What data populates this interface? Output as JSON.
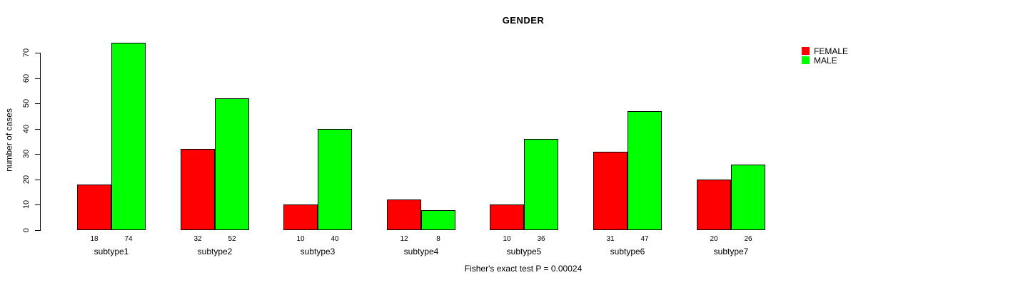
{
  "chart_data": {
    "type": "bar",
    "title": "GENDER",
    "ylabel": "number of cases",
    "xlabel": "",
    "categories": [
      "subtype1",
      "subtype2",
      "subtype3",
      "subtype4",
      "subtype5",
      "subtype6",
      "subtype7"
    ],
    "series": [
      {
        "name": "FEMALE",
        "color": "#ff0000",
        "values": [
          18,
          32,
          10,
          12,
          10,
          31,
          20
        ]
      },
      {
        "name": "MALE",
        "color": "#00ff00",
        "values": [
          74,
          52,
          40,
          8,
          36,
          47,
          26
        ]
      }
    ],
    "y_ticks": [
      0,
      10,
      20,
      30,
      40,
      50,
      60,
      70
    ],
    "ylim": [
      0,
      74
    ],
    "grid": false,
    "legend_position": "top-right",
    "bar_value_labels": true,
    "caption": "Fisher's exact test P = 0.00024"
  },
  "colors": {
    "bar_border": "#000000",
    "text": "#000000",
    "background": "#ffffff"
  }
}
